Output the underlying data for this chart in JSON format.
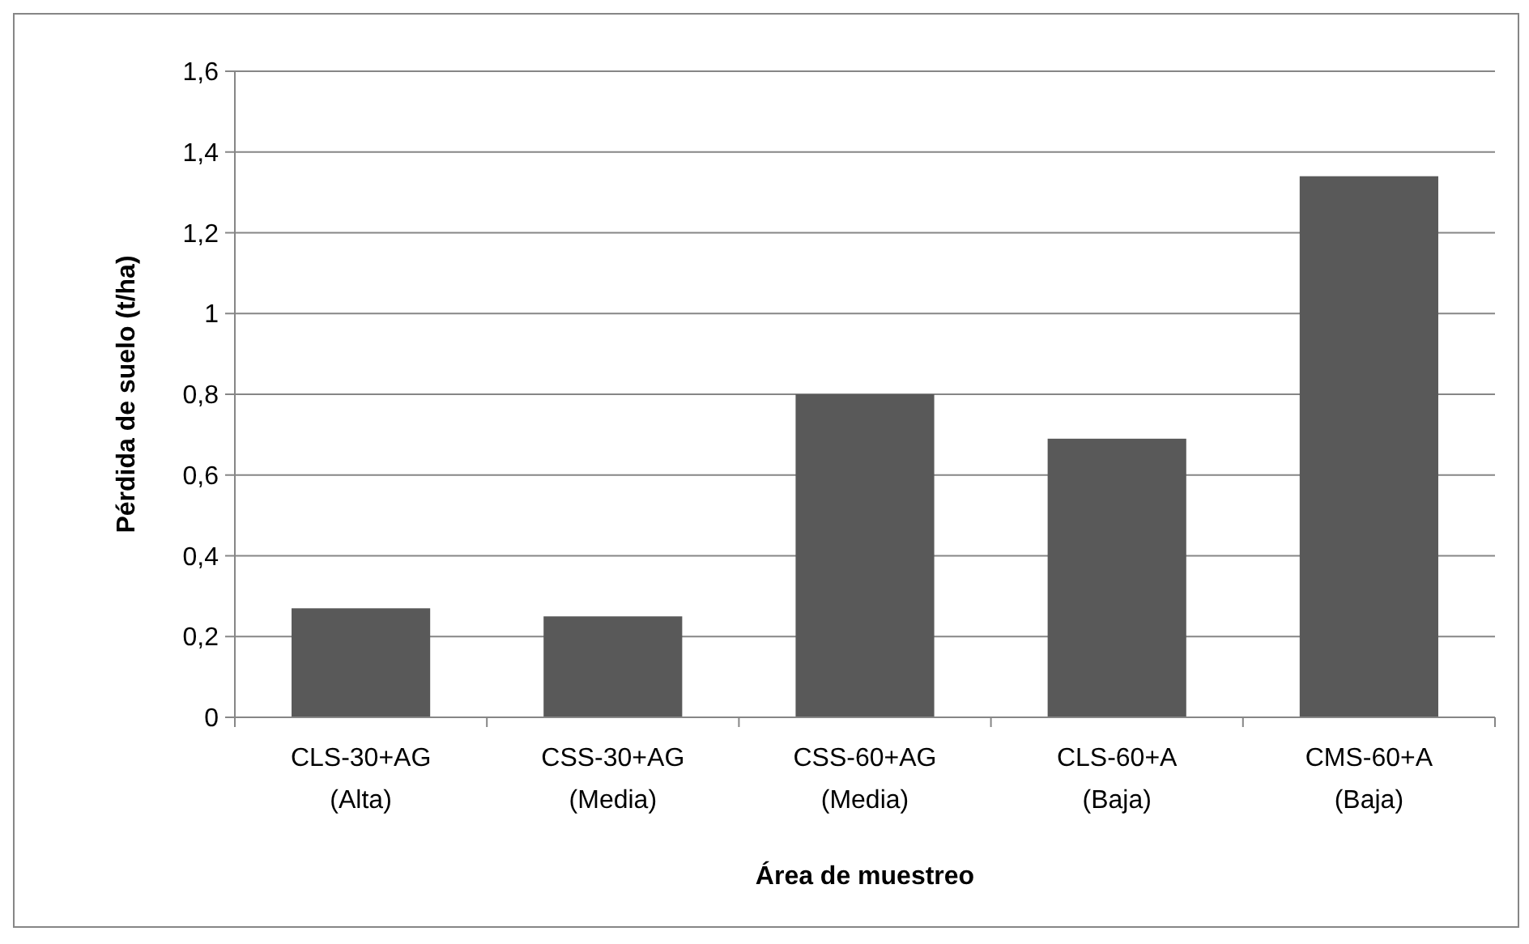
{
  "chart_data": {
    "type": "bar",
    "xlabel": "Área de muestreo",
    "ylabel": "Pérdida de suelo (t/ha)",
    "categories": [
      "CLS-30+AG\n(Alta)",
      "CSS-30+AG\n(Media)",
      "CSS-60+AG\n(Media)",
      "CLS-60+A\n(Baja)",
      "CMS-60+A\n(Baja)"
    ],
    "values": [
      0.27,
      0.25,
      0.8,
      0.69,
      1.34
    ],
    "color": "#595959",
    "ylim": [
      0,
      1.6
    ],
    "yticks": [
      {
        "value": 0,
        "label": "0"
      },
      {
        "value": 0.2,
        "label": "0,2"
      },
      {
        "value": 0.4,
        "label": "0,4"
      },
      {
        "value": 0.6,
        "label": "0,6"
      },
      {
        "value": 0.8,
        "label": "0,8"
      },
      {
        "value": 1,
        "label": "1"
      },
      {
        "value": 1.2,
        "label": "1,2"
      },
      {
        "value": 1.4,
        "label": "1,4"
      },
      {
        "value": 1.6,
        "label": "1,6"
      }
    ],
    "grid": "y"
  }
}
